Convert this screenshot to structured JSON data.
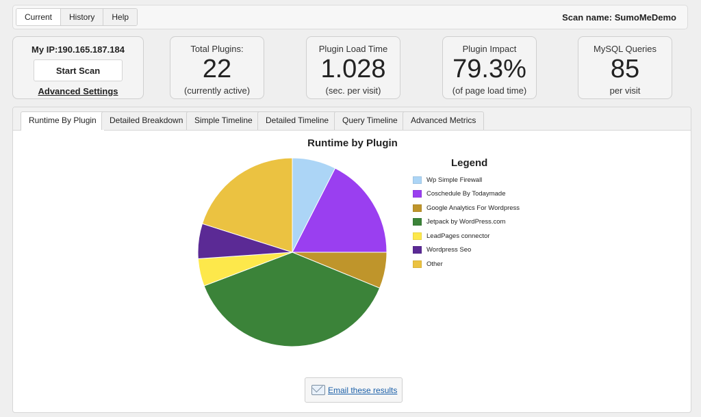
{
  "top_tabs": [
    "Current",
    "History",
    "Help"
  ],
  "scan": {
    "label": "Scan name:",
    "name": "SumoMeDemo"
  },
  "ip_card": {
    "ip": "My IP:190.165.187.184",
    "start_scan": "Start Scan",
    "advanced_settings": "Advanced Settings"
  },
  "stats": [
    {
      "label": "Total Plugins:",
      "value": "22",
      "sub": "(currently active)"
    },
    {
      "label": "Plugin Load Time",
      "value": "1.028",
      "sub": "(sec. per visit)"
    },
    {
      "label": "Plugin Impact",
      "value": "79.3%",
      "sub": "(of page load time)"
    },
    {
      "label": "MySQL Queries",
      "value": "85",
      "sub": "per visit"
    }
  ],
  "tabs": [
    "Runtime By Plugin",
    "Detailed Breakdown",
    "Simple Timeline",
    "Detailed Timeline",
    "Query Timeline",
    "Advanced Metrics"
  ],
  "active_tab": 0,
  "email_label": "Email these results",
  "chart_data": {
    "type": "pie",
    "title": "Runtime by Plugin",
    "legend_title": "Legend",
    "legend_position": "right",
    "categories": [
      "Wp Simple Firewall",
      "Coschedule By Todaymade",
      "Google Analytics For Wordpress",
      "Jetpack by WordPress.com",
      "LeadPages connector",
      "Wordpress Seo",
      "Other"
    ],
    "values": [
      7.5,
      17.5,
      6.2,
      38.0,
      4.7,
      6.0,
      20.1
    ],
    "colors": [
      "#acd5f6",
      "#9a3ff0",
      "#bf952b",
      "#3b8339",
      "#fde84b",
      "#5b2a95",
      "#ebc241"
    ]
  }
}
